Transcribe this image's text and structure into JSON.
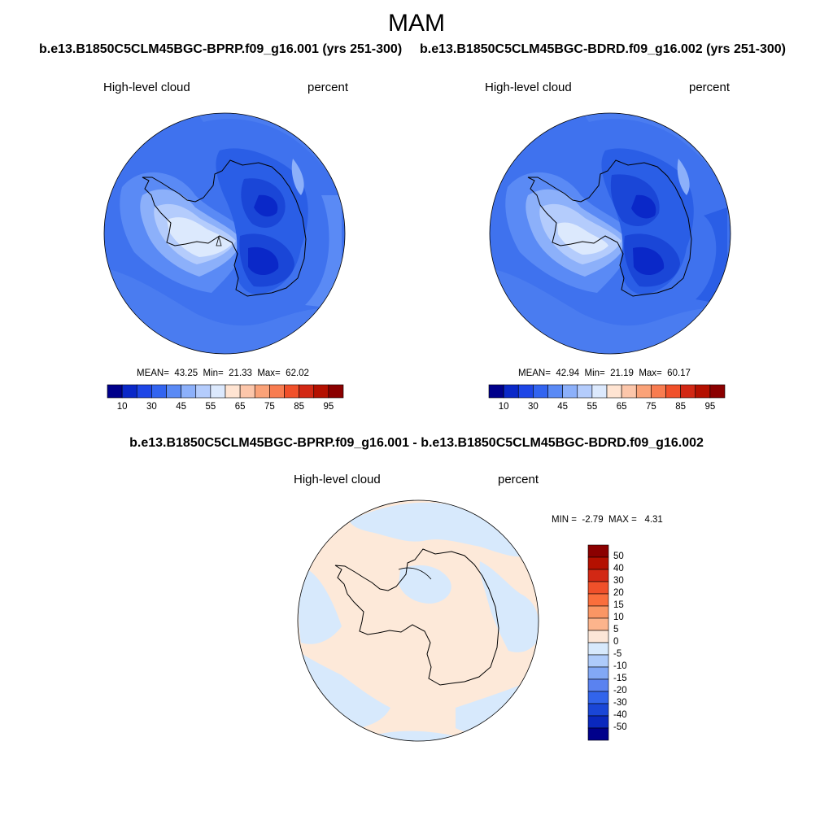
{
  "title": "MAM",
  "panels": [
    {
      "case": "b.e13.B1850C5CLM45BGC-BPRP.f09_g16.001 (yrs 251-300)",
      "field": "High-level cloud",
      "units": "percent",
      "stats": {
        "mean": "43.25",
        "min": "21.33",
        "max": "62.02"
      },
      "colorbar_labels": [
        "10",
        "30",
        "45",
        "55",
        "65",
        "75",
        "85",
        "95"
      ]
    },
    {
      "case": "b.e13.B1850C5CLM45BGC-BDRD.f09_g16.002 (yrs 251-300)",
      "field": "High-level cloud",
      "units": "percent",
      "stats": {
        "mean": "42.94",
        "min": "21.19",
        "max": "60.17"
      },
      "colorbar_labels": [
        "10",
        "30",
        "45",
        "55",
        "65",
        "75",
        "85",
        "95"
      ]
    }
  ],
  "difference": {
    "title": "b.e13.B1850C5CLM45BGC-BPRP.f09_g16.001 - b.e13.B1850C5CLM45BGC-BDRD.f09_g16.002",
    "field": "High-level cloud",
    "units": "percent",
    "stats": {
      "min": "-2.79",
      "max": "4.31"
    },
    "colorbar_labels": [
      "50",
      "40",
      "30",
      "20",
      "15",
      "10",
      "5",
      "0",
      "-5",
      "-10",
      "-15",
      "-20",
      "-30",
      "-40",
      "-50"
    ]
  },
  "labels": {
    "mean": "MEAN=",
    "min": "Min=",
    "max": "Max=",
    "min_caps": "MIN =",
    "max_caps": "MAX ="
  },
  "colors": {
    "abs_scale": [
      "#00008b",
      "#0a28c8",
      "#1e46e6",
      "#3264f0",
      "#5a8af5",
      "#8cb0fa",
      "#b4ccfc",
      "#dce9fd",
      "#ffe4d2",
      "#fcc6aa",
      "#faa278",
      "#f87c50",
      "#f0502a",
      "#d22814",
      "#b41000",
      "#8b0000"
    ],
    "diff_scale": [
      "#8b0000",
      "#b41000",
      "#d22814",
      "#f0502a",
      "#fa6e3c",
      "#fa9664",
      "#fcb48c",
      "#fce6d7",
      "#d7e9fc",
      "#aecbfa",
      "#82a8f5",
      "#5a82f0",
      "#3264eb",
      "#1a46d7",
      "#0a28be",
      "#00008b"
    ]
  }
}
